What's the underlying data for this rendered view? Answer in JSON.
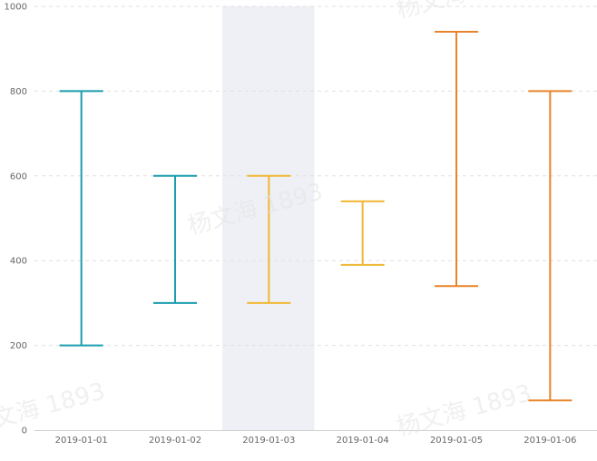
{
  "chart_data": {
    "type": "errorbar",
    "categories": [
      "2019-01-01",
      "2019-01-02",
      "2019-01-03",
      "2019-01-04",
      "2019-01-05",
      "2019-01-06"
    ],
    "low": [
      200,
      300,
      300,
      390,
      340,
      70
    ],
    "high": [
      800,
      600,
      600,
      540,
      940,
      800
    ],
    "colors": [
      "#1a9dad",
      "#1a9dad",
      "#f0b732",
      "#f0b732",
      "#e8842a",
      "#e8842a"
    ],
    "highlighted_category": "2019-01-03",
    "highlight_color": "#eef0f5",
    "y_ticks": [
      0,
      200,
      400,
      600,
      800,
      1000
    ],
    "ylim": [
      0,
      1000
    ],
    "grid": true,
    "watermark_text": "杨文海 1893"
  }
}
